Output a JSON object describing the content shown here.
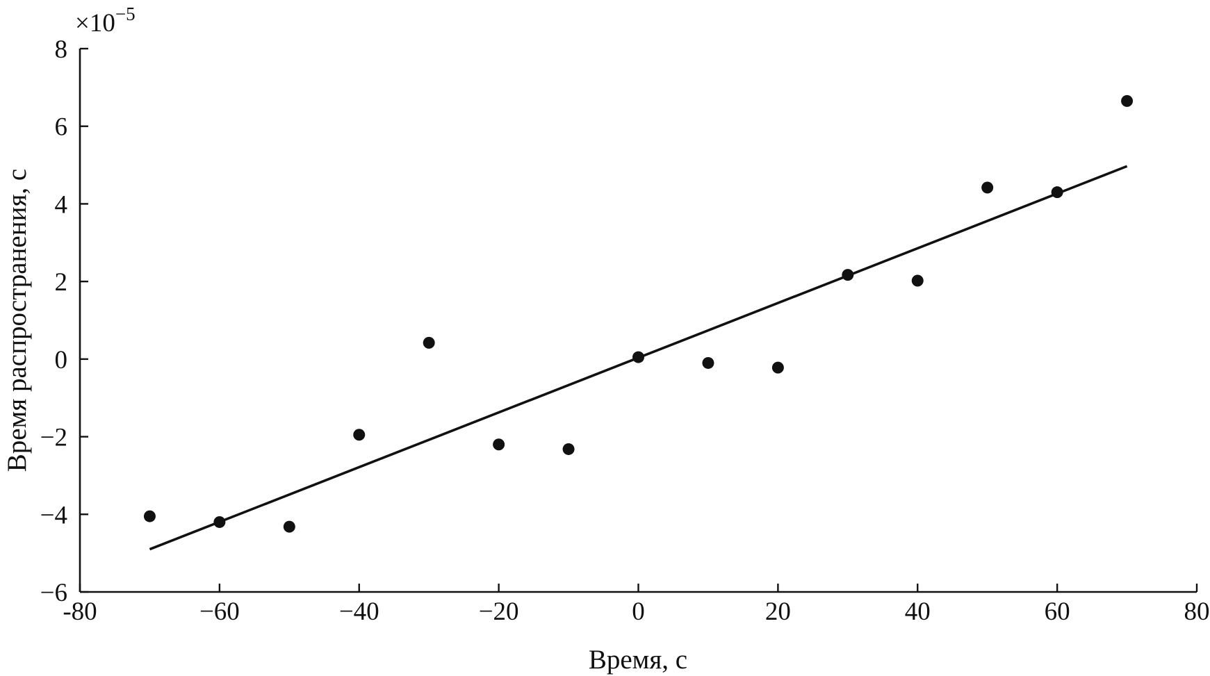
{
  "chart_data": {
    "type": "scatter",
    "title": "",
    "xlabel": "Время, с",
    "ylabel": "Время распространения, с",
    "y_scale_factor_label": "×10",
    "y_scale_factor_exponent": "−5",
    "xlim": [
      -80,
      80
    ],
    "ylim": [
      -6,
      8
    ],
    "x_ticks": [
      -80,
      -60,
      -40,
      -20,
      0,
      20,
      40,
      60,
      80
    ],
    "x_tick_labels": [
      "-80",
      "−60",
      "−40",
      "−20",
      "0",
      "20",
      "40",
      "60",
      "80"
    ],
    "y_ticks": [
      -6,
      -4,
      -2,
      0,
      2,
      4,
      6,
      8
    ],
    "y_tick_labels": [
      "−6",
      "−4",
      "−2",
      "0",
      "2",
      "4",
      "6",
      "8"
    ],
    "grid": false,
    "series": [
      {
        "type": "scatter",
        "points": [
          {
            "x": -70,
            "y": -4.05
          },
          {
            "x": -60,
            "y": -4.2
          },
          {
            "x": -50,
            "y": -4.32
          },
          {
            "x": -40,
            "y": -1.95
          },
          {
            "x": -30,
            "y": 0.42
          },
          {
            "x": -20,
            "y": -2.2
          },
          {
            "x": -10,
            "y": -2.32
          },
          {
            "x": 0,
            "y": 0.05
          },
          {
            "x": 10,
            "y": -0.1
          },
          {
            "x": 20,
            "y": -0.22
          },
          {
            "x": 30,
            "y": 2.17
          },
          {
            "x": 40,
            "y": 2.02
          },
          {
            "x": 50,
            "y": 4.42
          },
          {
            "x": 60,
            "y": 4.3
          },
          {
            "x": 70,
            "y": 6.65
          }
        ]
      },
      {
        "type": "line",
        "points": [
          {
            "x": -70,
            "y": -4.9
          },
          {
            "x": 70,
            "y": 4.97
          }
        ]
      }
    ]
  }
}
